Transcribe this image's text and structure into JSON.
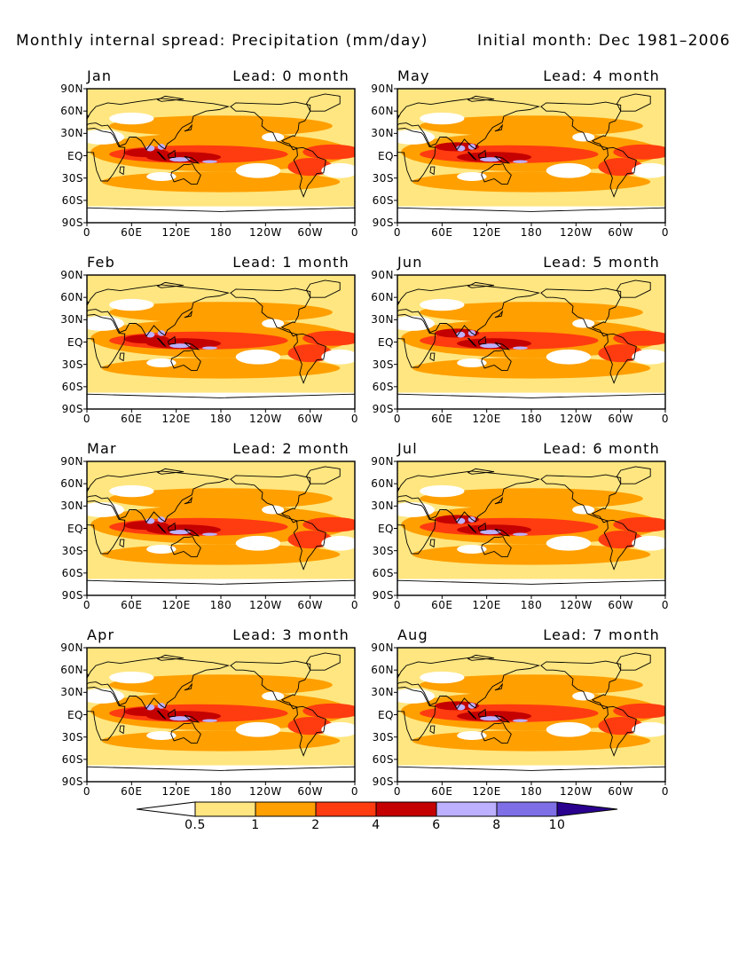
{
  "header": {
    "title": "Monthly internal spread: Precipitation (mm/day)",
    "initial_month": "Initial month: Dec 1981–2006"
  },
  "axes": {
    "lat_labels": [
      "90N",
      "60N",
      "30N",
      "EQ",
      "30S",
      "60S",
      "90S"
    ],
    "lon_labels": [
      "0",
      "60E",
      "120E",
      "180",
      "120W",
      "60W",
      "0"
    ]
  },
  "panels": [
    {
      "month": "Jan",
      "lead": "Lead: 0 month"
    },
    {
      "month": "May",
      "lead": "Lead: 4 month"
    },
    {
      "month": "Feb",
      "lead": "Lead: 1 month"
    },
    {
      "month": "Jun",
      "lead": "Lead: 5 month"
    },
    {
      "month": "Mar",
      "lead": "Lead: 2 month"
    },
    {
      "month": "Jul",
      "lead": "Lead: 6 month"
    },
    {
      "month": "Apr",
      "lead": "Lead: 3 month"
    },
    {
      "month": "Aug",
      "lead": "Lead: 7 month"
    }
  ],
  "colorbar": {
    "labels": [
      "0.5",
      "1",
      "2",
      "4",
      "6",
      "8",
      "10"
    ],
    "colors": [
      "#ffffff",
      "#ffe680",
      "#ff9f00",
      "#ff3b10",
      "#c40000",
      "#bcb0ff",
      "#7f6fe6",
      "#2a008f"
    ]
  }
}
